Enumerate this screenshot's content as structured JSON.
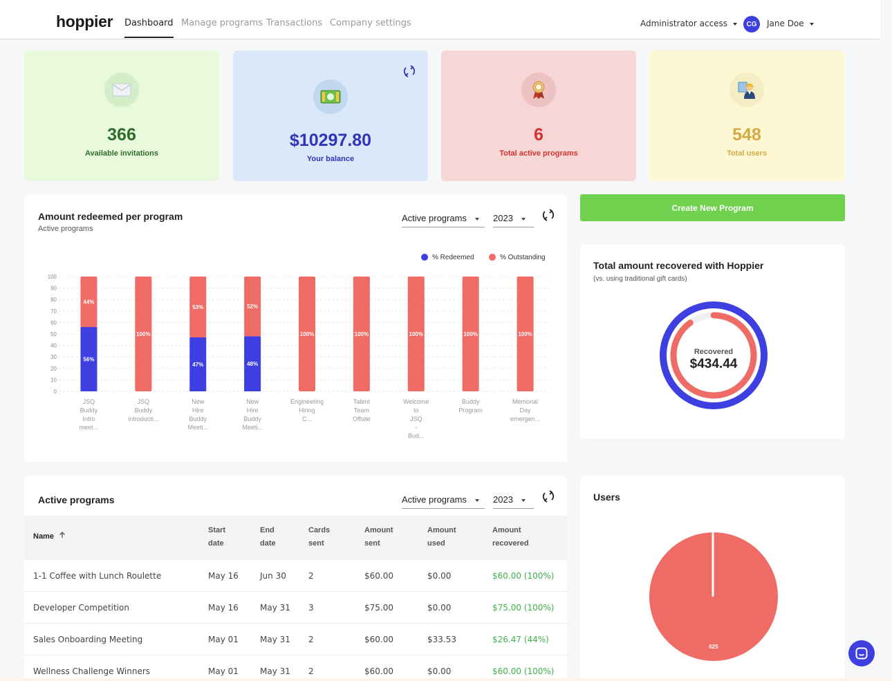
{
  "nav": {
    "logo": "hoppier",
    "tabs": [
      "Dashboard",
      "Manage programs",
      "Transactions",
      "Company settings"
    ],
    "active_tab": "Dashboard",
    "admin_label": "Administrator access",
    "avatar_initials": "CG",
    "user_name": "Jane Doe"
  },
  "stats": [
    {
      "value": "366",
      "label": "Available invitations",
      "bg": "#e8f9dc",
      "color": "#2f6b2a",
      "icon": "envelope-icon"
    },
    {
      "value": "$10297.80",
      "label": "Your balance",
      "bg": "#dae8f9",
      "color": "#3034b8",
      "icon": "cash-icon"
    },
    {
      "value": "6",
      "label": "Total active programs",
      "bg": "#f7d6d6",
      "color": "#d3322e",
      "icon": "award-ribbon-icon"
    },
    {
      "value": "548",
      "label": "Total users",
      "bg": "#fdf7d3",
      "color": "#d2ab43",
      "icon": "teacher-icon"
    }
  ],
  "redeemed_card": {
    "title": "Amount redeemed per program",
    "subtitle": "Active programs",
    "filter_label": "Active programs",
    "year_label": "2023"
  },
  "chart_data": {
    "type": "bar",
    "stacked": true,
    "categories": [
      [
        "JSQ",
        "Buddy",
        "Intro",
        "meet..."
      ],
      [
        "JSQ",
        "Buddy",
        "introducti..."
      ],
      [
        "New",
        "Hire",
        "Buddy",
        "Meeti..."
      ],
      [
        "New",
        "Hire",
        "Buddy",
        "Meeti..."
      ],
      [
        "Engineering",
        "Hiring",
        "C..."
      ],
      [
        "Talent",
        "Team",
        "Offsite"
      ],
      [
        "Welcome",
        "to",
        "JSQ",
        "-",
        "Bud..."
      ],
      [
        "Buddy",
        "Program"
      ],
      [
        "Memorial",
        "Day",
        "emergen..."
      ]
    ],
    "series": [
      {
        "name": "% Redeemed",
        "color": "#3d3fe0",
        "values": [
          56,
          0,
          47,
          48,
          0,
          0,
          0,
          0,
          0
        ],
        "labels": [
          "56%",
          "",
          "47%",
          "48%",
          "",
          "",
          "",
          "",
          ""
        ]
      },
      {
        "name": "% Outstanding",
        "color": "#ef6b65",
        "values": [
          44,
          100,
          53,
          52,
          100,
          100,
          100,
          100,
          100
        ],
        "labels": [
          "44%",
          "100%",
          "53%",
          "52%",
          "100%",
          "100%",
          "100%",
          "100%",
          "100%"
        ]
      }
    ],
    "ylim": [
      0,
      100
    ],
    "yticks": [
      "0",
      "10",
      "20",
      "30",
      "40",
      "50",
      "60",
      "70",
      "80",
      "90",
      "100"
    ],
    "legend": "top-right",
    "grid": true
  },
  "create_button": "Create New Program",
  "recovered_card": {
    "title": "Total amount recovered with Hoppier",
    "subtitle": "(vs. using traditional gift cards)",
    "center_label": "Recovered",
    "center_value": "$434.44",
    "progress": 0.9
  },
  "programs_card": {
    "title": "Active programs",
    "filter_label": "Active programs",
    "year_label": "2023",
    "columns": [
      [
        "Name"
      ],
      [
        "Start",
        "date"
      ],
      [
        "End",
        "date"
      ],
      [
        "Cards",
        "sent"
      ],
      [
        "Amount",
        "sent"
      ],
      [
        "Amount",
        "used"
      ],
      [
        "Amount",
        "recovered"
      ]
    ],
    "rows": [
      [
        "1-1 Coffee with Lunch Roulette",
        "May 16",
        "Jun 30",
        "2",
        "$60.00",
        "$0.00",
        "$60.00 (100%)"
      ],
      [
        "Developer Competition",
        "May 16",
        "May 31",
        "3",
        "$75.00",
        "$0.00",
        "$75.00 (100%)"
      ],
      [
        "Sales Onboarding Meeting",
        "May 01",
        "May 31",
        "2",
        "$60.00",
        "$33.53",
        "$26.47 (44%)"
      ],
      [
        "Wellness Challenge Winners",
        "May 01",
        "May 31",
        "2",
        "$60.00",
        "$0.00",
        "$60.00 (100%)"
      ]
    ]
  },
  "users_card": {
    "title": "Users",
    "slice_label": "625"
  }
}
